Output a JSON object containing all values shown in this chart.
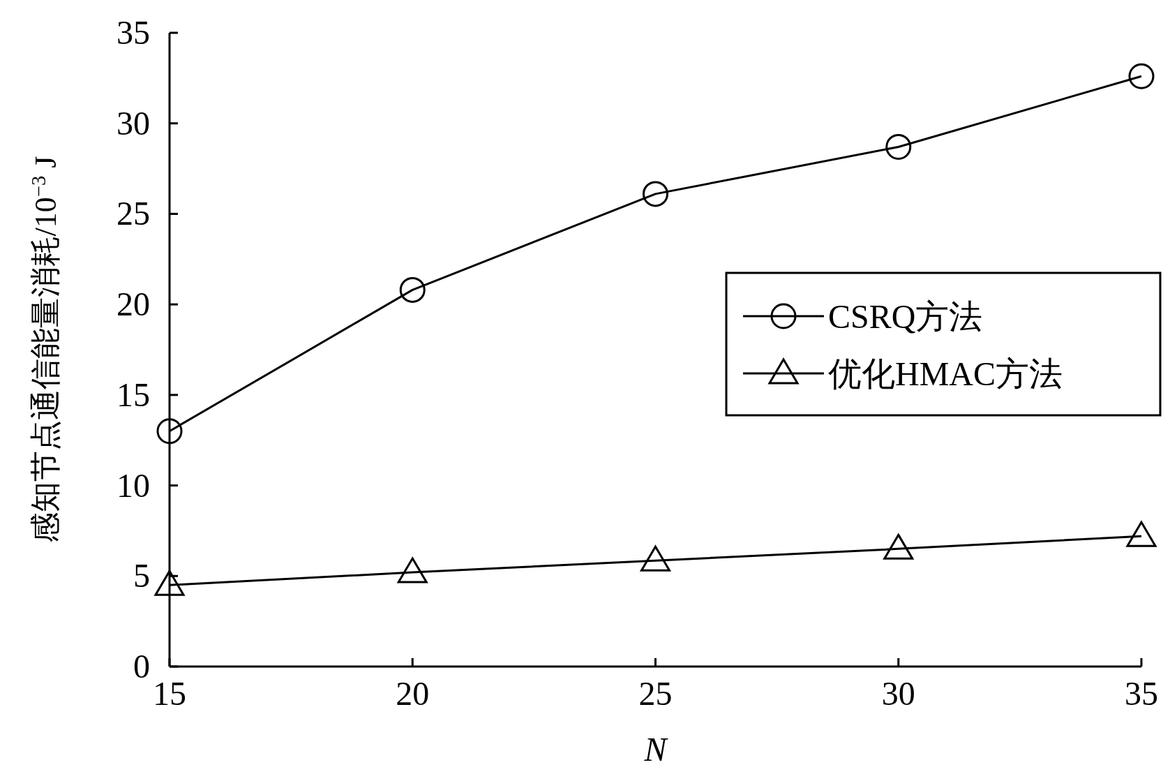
{
  "chart_data": {
    "type": "line",
    "xlabel": "N",
    "ylabel": "感知节点通信能量消耗/10$^{−3}$ J",
    "x": [
      15,
      20,
      25,
      30,
      35
    ],
    "xlim": [
      15,
      35
    ],
    "xticks": [
      15,
      20,
      25,
      30,
      35
    ],
    "ylim": [
      0,
      35
    ],
    "yticks": [
      0,
      5,
      10,
      15,
      20,
      25,
      30,
      35
    ],
    "grid": false,
    "legend": "right",
    "line_style": "solid",
    "series": [
      {
        "name": "CSRQ方法",
        "color": "#000000",
        "marker": "circle",
        "values": [
          13.0,
          20.8,
          26.1,
          28.7,
          32.6
        ]
      },
      {
        "name": "优化HMAC方法",
        "color": "#000000",
        "marker": "triangle",
        "values": [
          4.5,
          5.2,
          5.85,
          6.5,
          7.2
        ]
      }
    ]
  }
}
